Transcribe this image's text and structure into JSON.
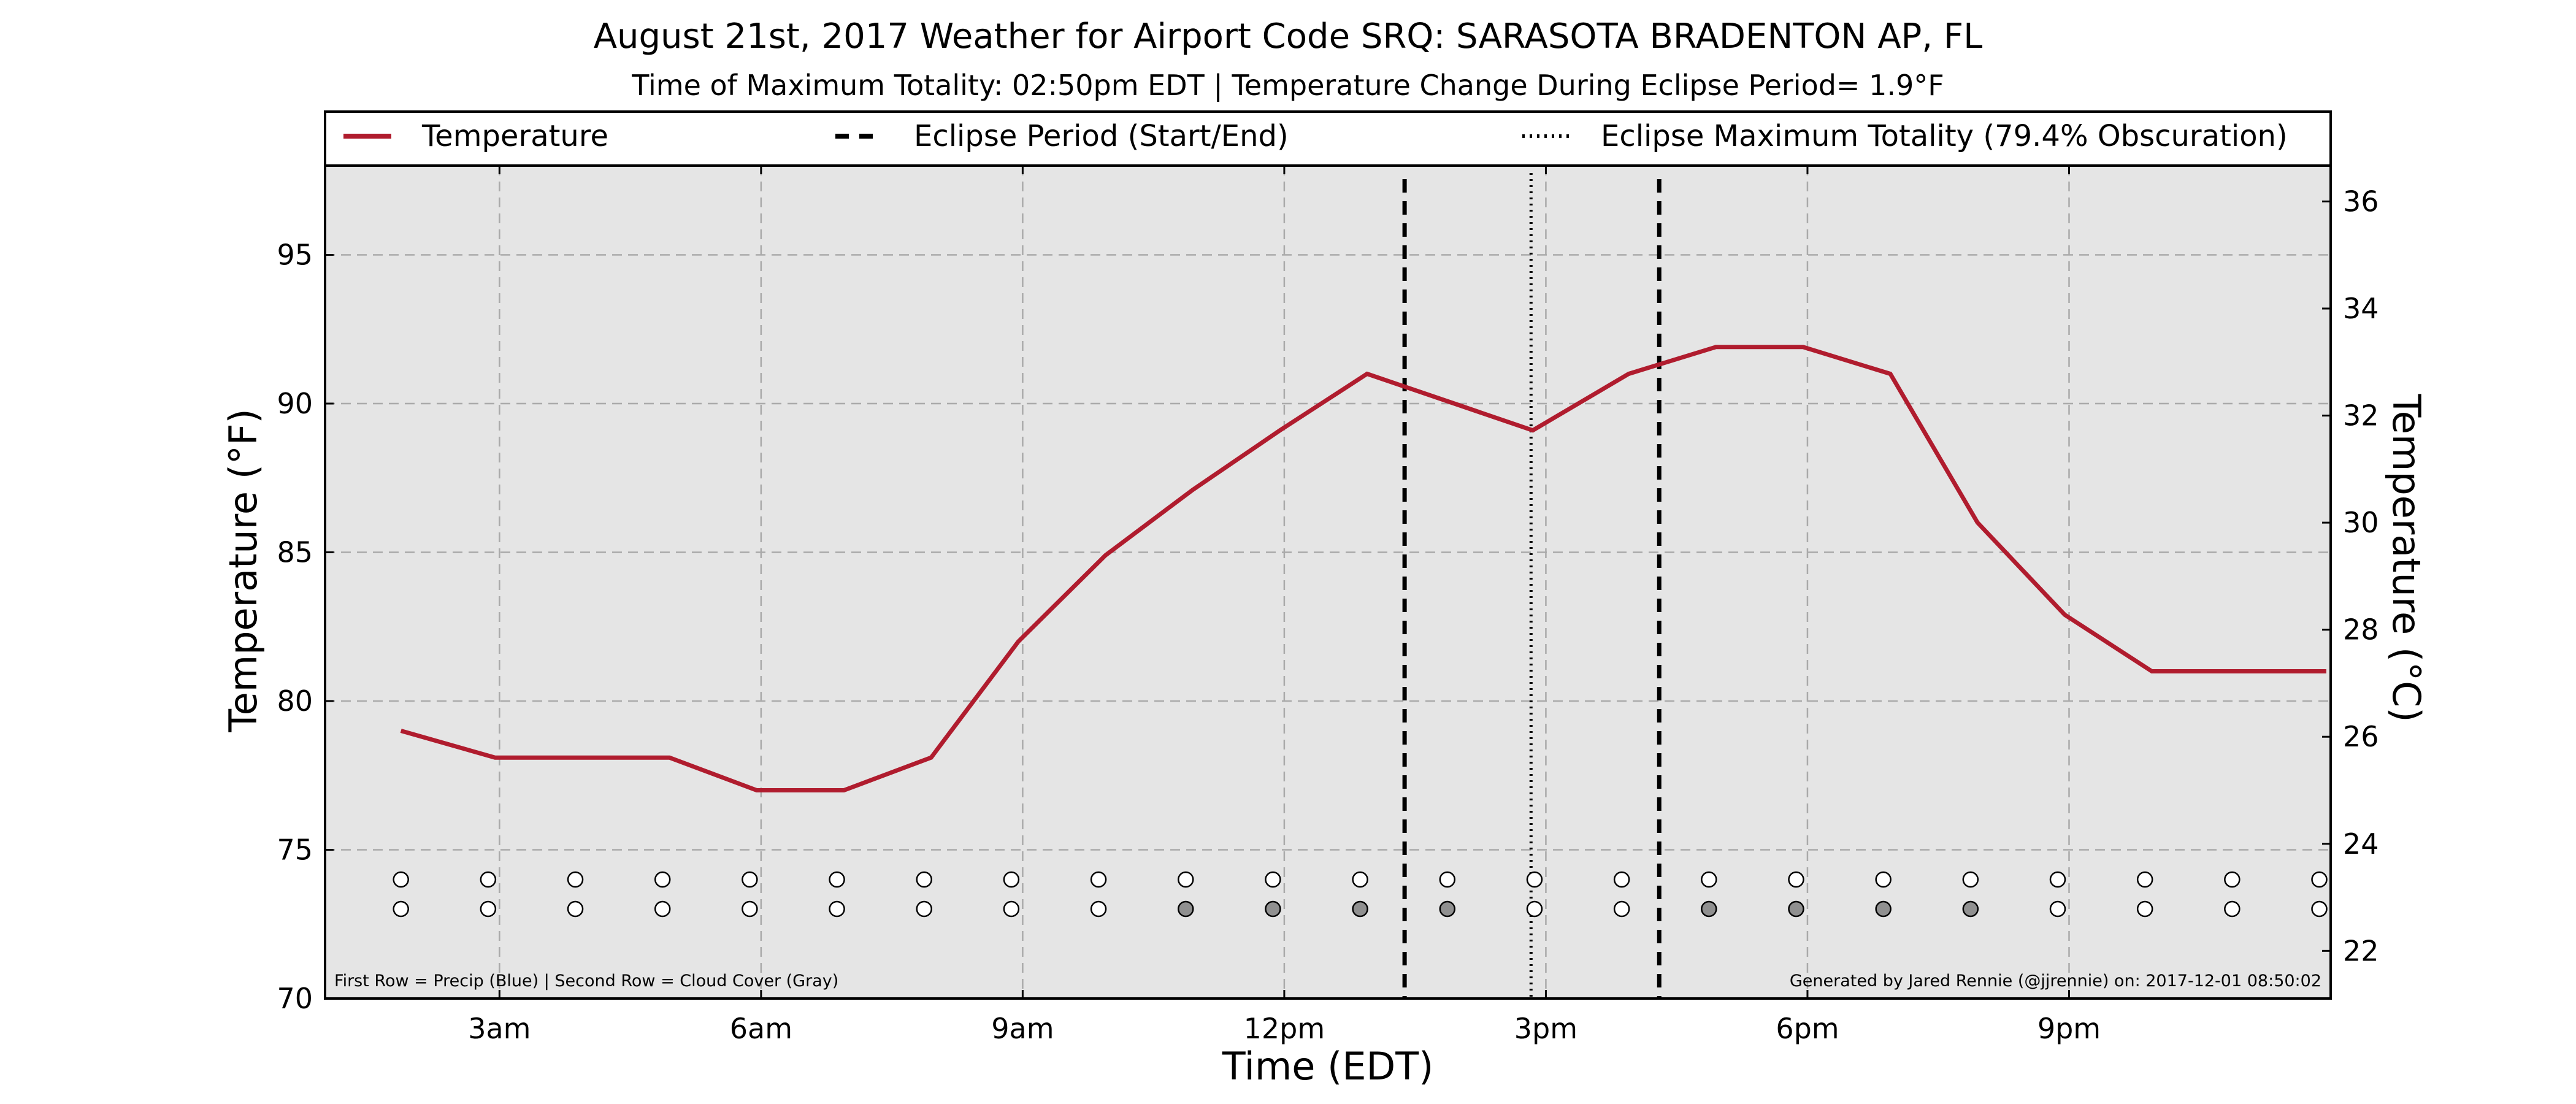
{
  "chart_data": {
    "type": "line",
    "title": "August 21st, 2017 Weather for Airport Code SRQ: SARASOTA BRADENTON AP, FL",
    "subtitle": "Time of Maximum Totality: 02:50pm EDT | Temperature Change During Eclipse Period= 1.9°F",
    "xlabel": "Time (EDT)",
    "ylabel": "Temperature (°F)",
    "ylabel_right": "Temperature (°C)",
    "xlim": [
      1.0,
      24.0
    ],
    "ylim": [
      70,
      98
    ],
    "ylim_right_celsius": [
      21.11,
      36.67
    ],
    "x_ticks": [
      {
        "x": 3,
        "label": "3am"
      },
      {
        "x": 6,
        "label": "6am"
      },
      {
        "x": 9,
        "label": "9am"
      },
      {
        "x": 12,
        "label": "12pm"
      },
      {
        "x": 15,
        "label": "3pm"
      },
      {
        "x": 18,
        "label": "6pm"
      },
      {
        "x": 21,
        "label": "9pm"
      }
    ],
    "y_ticks": [
      70,
      75,
      80,
      85,
      90,
      95
    ],
    "y_ticks_right": [
      22,
      24,
      26,
      28,
      30,
      32,
      34,
      36
    ],
    "grid": true,
    "legend_position": "top",
    "legend": [
      "Temperature",
      "Eclipse Period (Start/End)",
      "Eclipse Maximum Totality (79.4% Obscuration)"
    ],
    "series": [
      {
        "name": "Temperature",
        "color": "#b01c2e",
        "x": [
          1.87,
          2.95,
          3.95,
          4.95,
          5.95,
          6.95,
          7.95,
          8.95,
          9.95,
          10.95,
          11.95,
          12.95,
          13.95,
          14.85,
          15.95,
          16.95,
          17.95,
          18.95,
          19.95,
          20.95,
          21.95,
          22.95,
          23.95
        ],
        "y": [
          79.0,
          78.1,
          78.1,
          78.1,
          77.0,
          77.0,
          78.1,
          82.0,
          84.9,
          87.1,
          89.1,
          91.0,
          90.0,
          89.1,
          91.0,
          91.9,
          91.9,
          91.0,
          86.0,
          82.9,
          81.0,
          81.0,
          81.0
        ]
      }
    ],
    "eclipse_period": {
      "start": 13.38,
      "end": 16.3,
      "max_totality": 14.83
    },
    "precip_row": {
      "x": [
        1.87,
        2.87,
        3.87,
        4.87,
        5.87,
        6.87,
        7.87,
        8.87,
        9.87,
        10.87,
        11.87,
        12.87,
        13.87,
        14.87,
        15.87,
        16.87,
        17.87,
        18.87,
        19.87,
        20.87,
        21.87,
        22.87,
        23.87
      ],
      "filled": [
        false,
        false,
        false,
        false,
        false,
        false,
        false,
        false,
        false,
        false,
        false,
        false,
        false,
        false,
        false,
        false,
        false,
        false,
        false,
        false,
        false,
        false,
        false
      ]
    },
    "cloud_row": {
      "x": [
        1.87,
        2.87,
        3.87,
        4.87,
        5.87,
        6.87,
        7.87,
        8.87,
        9.87,
        10.87,
        11.87,
        12.87,
        13.87,
        14.87,
        15.87,
        16.87,
        17.87,
        18.87,
        19.87,
        20.87,
        21.87,
        22.87,
        23.87
      ],
      "filled": [
        false,
        false,
        false,
        false,
        false,
        false,
        false,
        false,
        false,
        true,
        true,
        true,
        true,
        false,
        false,
        true,
        true,
        true,
        true,
        false,
        false,
        false,
        false
      ]
    },
    "footnote_left": "First Row = Precip (Blue) | Second Row = Cloud Cover (Gray)",
    "footnote_right": "Generated by Jared Rennie (@jjrennie) on: 2017-12-01 08:50:02",
    "colors": {
      "plot_background": "#e5e5e5",
      "temperature_line": "#b01c2e",
      "cloud_fill": "#909090",
      "grid": "#aaaaaa"
    }
  }
}
